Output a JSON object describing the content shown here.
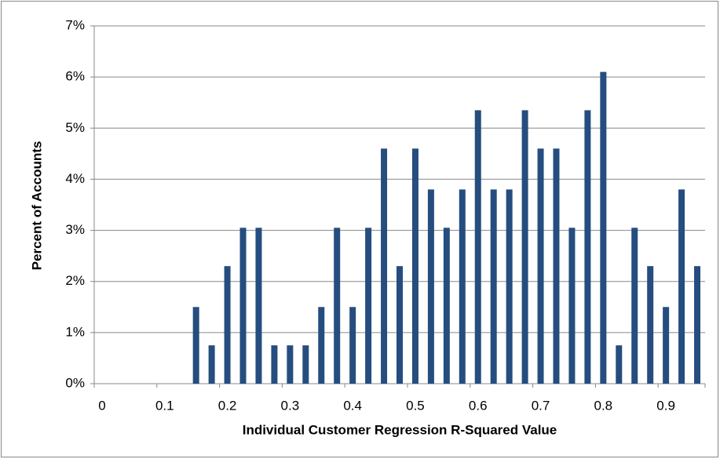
{
  "chart_data": {
    "type": "bar",
    "x_label": "Individual Customer  Regression  R-Squared Value",
    "y_label": "Percent of Accounts",
    "categories": [
      "0",
      null,
      null,
      null,
      "0.1",
      null,
      null,
      null,
      "0.2",
      null,
      null,
      null,
      "0.3",
      null,
      null,
      null,
      "0.4",
      null,
      null,
      null,
      "0.5",
      null,
      null,
      null,
      "0.6",
      null,
      null,
      null,
      "0.7",
      null,
      null,
      null,
      "0.8",
      null,
      null,
      null,
      "0.9",
      null,
      null
    ],
    "values": [
      0,
      0,
      0,
      0,
      0,
      0,
      1.5,
      0.75,
      2.3,
      3.05,
      3.05,
      0.75,
      0.75,
      0.75,
      1.5,
      3.05,
      1.5,
      3.05,
      4.6,
      2.3,
      4.6,
      3.8,
      3.05,
      3.8,
      5.35,
      3.8,
      3.8,
      5.35,
      4.6,
      4.6,
      3.05,
      5.35,
      6.1,
      0.75,
      3.05,
      2.3,
      1.5,
      3.8,
      2.3
    ],
    "color": "#254d7f",
    "ylim": [
      0,
      7
    ],
    "yticks": [
      {
        "value": 0,
        "label": "0%"
      },
      {
        "value": 1,
        "label": "1%"
      },
      {
        "value": 2,
        "label": "2%"
      },
      {
        "value": 3,
        "label": "3%"
      },
      {
        "value": 4,
        "label": "4%"
      },
      {
        "value": 5,
        "label": "5%"
      },
      {
        "value": 6,
        "label": "6%"
      },
      {
        "value": 7,
        "label": "7%"
      }
    ],
    "grid": true
  }
}
